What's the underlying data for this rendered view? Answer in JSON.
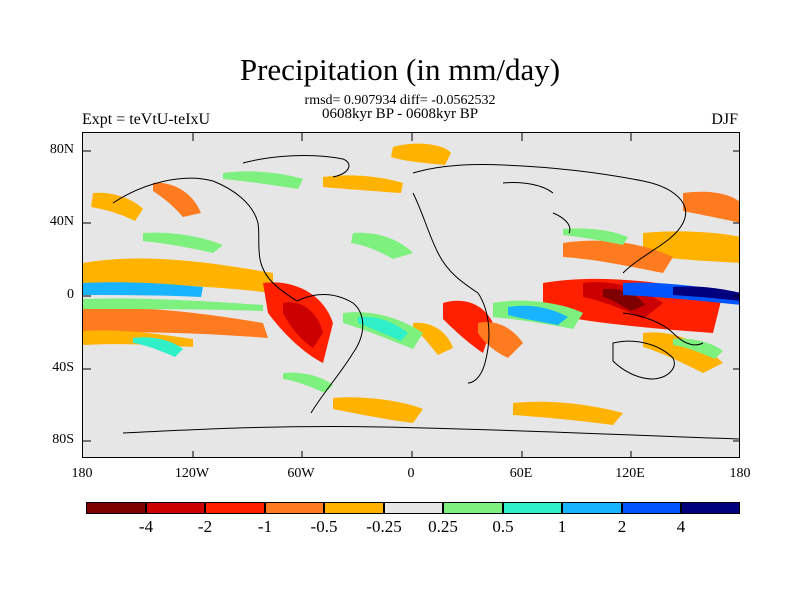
{
  "title": "Precipitation (in mm/day)",
  "stats_line": "rmsd= 0.907934 diff= -0.0562532",
  "period_line": "0608kyr BP - 0608kyr BP",
  "left_label": "Expt = teVtU-teIxU",
  "right_label": "DJF",
  "axes": {
    "lat_ticks": [
      "80N",
      "40N",
      "0",
      "40S",
      "80S"
    ],
    "lon_ticks": [
      "180",
      "120W",
      "60W",
      "0",
      "60E",
      "120E",
      "180"
    ]
  },
  "colorbar": {
    "colors": [
      "#7f0000",
      "#cc0000",
      "#ff2000",
      "#ff7b1f",
      "#ffb300",
      "#e6e6e6",
      "#7df07d",
      "#2ff0c8",
      "#19b4ff",
      "#0055ff",
      "#00007f"
    ],
    "labels": [
      "-4",
      "-2",
      "-1",
      "-0.5",
      "-0.25",
      "0.25",
      "0.5",
      "1",
      "2",
      "4"
    ]
  },
  "map": {
    "projection": "cylindrical equidistant",
    "background": "#e6e6e6"
  }
}
